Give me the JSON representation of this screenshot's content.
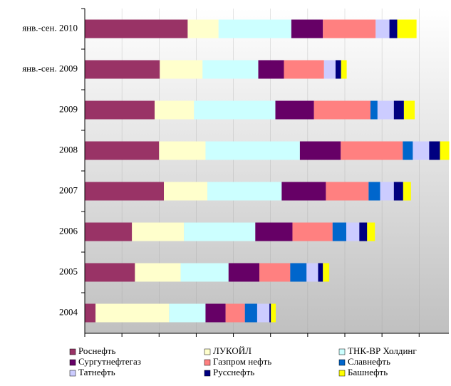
{
  "chart_data": {
    "type": "stacked_bar_horizontal",
    "categories": [
      "янв.-сен. 2010",
      "янв.-сен. 2009",
      "2009",
      "2008",
      "2007",
      "2006",
      "2005",
      "2004"
    ],
    "series": [
      {
        "name": "Роснефть",
        "color": "#993366",
        "values": [
          27.7,
          20.2,
          18.8,
          20,
          21.3,
          12.7,
          13.5,
          2.9
        ]
      },
      {
        "name": "ЛУКОЙЛ",
        "color": "#FFFFCC",
        "values": [
          8.3,
          11.5,
          10.6,
          12.5,
          11.7,
          14,
          12.3,
          19.8
        ]
      },
      {
        "name": "ТНК-ВР Холдинг",
        "color": "#CCFFFF",
        "values": [
          19.6,
          15,
          21.9,
          25.4,
          20,
          19.2,
          12.9,
          9.8
        ]
      },
      {
        "name": "Сургутнефтегаз",
        "color": "#660066",
        "values": [
          8.5,
          6.9,
          10.4,
          11,
          11.9,
          10,
          8.3,
          5.4
        ]
      },
      {
        "name": "Газпром нефть",
        "color": "#FF8080",
        "values": [
          14.2,
          10.8,
          15.2,
          16.7,
          11.5,
          10.8,
          8.3,
          5.2
        ]
      },
      {
        "name": "Славнефть",
        "color": "#0066CC",
        "values": [
          0,
          0,
          1.9,
          2.7,
          3.1,
          3.7,
          4.4,
          3.3
        ]
      },
      {
        "name": "Татнефть",
        "color": "#CCCCFF",
        "values": [
          3.7,
          3.1,
          4.4,
          4.4,
          3.7,
          3.5,
          3.1,
          3.3
        ]
      },
      {
        "name": "Русснефть",
        "color": "#000080",
        "values": [
          2.1,
          1.5,
          2.7,
          2.9,
          2.5,
          2.1,
          1.3,
          0.4
        ]
      },
      {
        "name": "Башнефть",
        "color": "#FFFF00",
        "values": [
          5.2,
          1.5,
          2.9,
          2.5,
          2.1,
          2.1,
          1.7,
          1.3
        ]
      }
    ],
    "xlim": [
      0,
      98
    ],
    "xticks": [
      0,
      10,
      20,
      30,
      40,
      50,
      60,
      70,
      80,
      90
    ],
    "grid": true
  }
}
